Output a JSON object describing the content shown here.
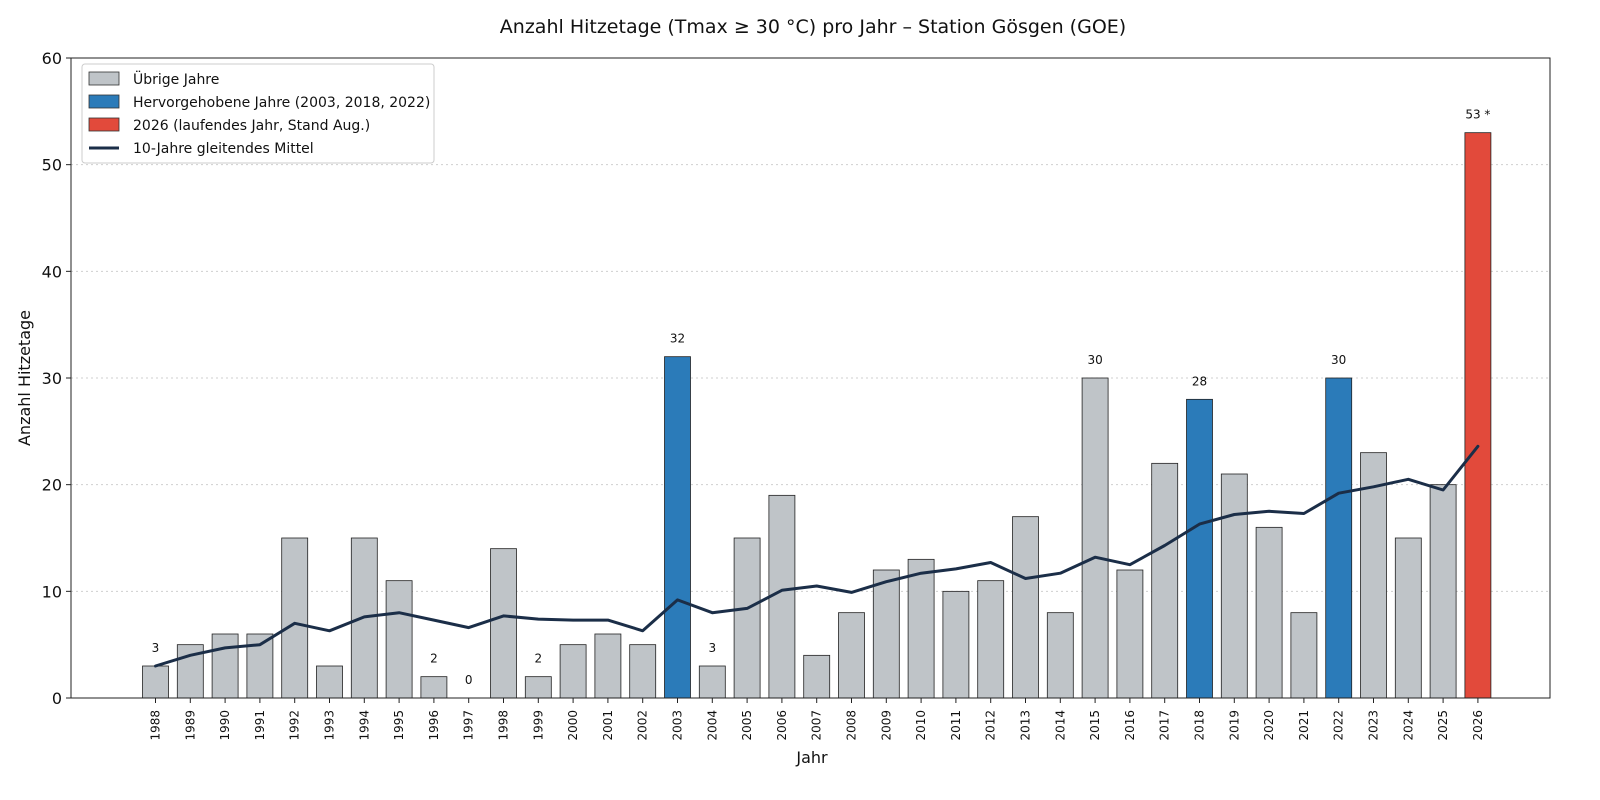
{
  "chart_data": {
    "type": "bar",
    "title": "Anzahl Hitzetage (Tmax ≥ 30 °C) pro Jahr – Station Gösgen (GOE)",
    "xlabel": "Jahr",
    "ylabel": "Anzahl Hitzetage",
    "ylim": [
      0,
      60
    ],
    "yticks": [
      0,
      10,
      20,
      30,
      40,
      50,
      60
    ],
    "grid": true,
    "legend_position": "top-left",
    "categories": [
      "1988",
      "1989",
      "1990",
      "1991",
      "1992",
      "1993",
      "1994",
      "1995",
      "1996",
      "1997",
      "1998",
      "1999",
      "2000",
      "2001",
      "2002",
      "2003",
      "2004",
      "2005",
      "2006",
      "2007",
      "2008",
      "2009",
      "2010",
      "2011",
      "2012",
      "2013",
      "2014",
      "2015",
      "2016",
      "2017",
      "2018",
      "2019",
      "2020",
      "2021",
      "2022",
      "2023",
      "2024",
      "2025",
      "2026"
    ],
    "series": [
      {
        "name": "Übrige Jahre",
        "type": "bar",
        "color": "#bfc4c8",
        "values": [
          3,
          5,
          6,
          6,
          15,
          3,
          15,
          11,
          2,
          0,
          14,
          2,
          5,
          6,
          5,
          32,
          3,
          15,
          19,
          4,
          8,
          12,
          13,
          10,
          11,
          17,
          8,
          30,
          12,
          22,
          28,
          21,
          16,
          8,
          30,
          23,
          15,
          20,
          53
        ]
      },
      {
        "name": "10-Jahre gleitendes Mittel",
        "type": "line",
        "color": "#1b2e48",
        "values": [
          3,
          4,
          4.7,
          5,
          7,
          6.3,
          7.6,
          8,
          7.3,
          6.6,
          7.7,
          7.4,
          7.3,
          7.3,
          6.3,
          9.2,
          8,
          8.4,
          10.1,
          10.5,
          9.9,
          10.9,
          11.7,
          12.1,
          12.7,
          11.2,
          11.7,
          13.2,
          12.5,
          14.3,
          16.3,
          17.2,
          17.5,
          17.3,
          19.2,
          19.8,
          20.5,
          19.5,
          23.6
        ]
      }
    ],
    "highlight": {
      "label": "Hervorgehobene Jahre (2003, 2018, 2022)",
      "years": [
        "2003",
        "2018",
        "2022"
      ],
      "color": "#2b7bb9"
    },
    "current_year": {
      "label": "2026 (laufendes Jahr, Stand Aug.)",
      "year": "2026",
      "color": "#e24a3b"
    },
    "data_labels": [
      {
        "year": "1988",
        "text": "3"
      },
      {
        "year": "1996",
        "text": "2"
      },
      {
        "year": "1997",
        "text": "0"
      },
      {
        "year": "1999",
        "text": "2"
      },
      {
        "year": "2003",
        "text": "32"
      },
      {
        "year": "2004",
        "text": "3"
      },
      {
        "year": "2015",
        "text": "30"
      },
      {
        "year": "2018",
        "text": "28"
      },
      {
        "year": "2022",
        "text": "30"
      },
      {
        "year": "2026",
        "text": "53 *"
      }
    ]
  }
}
